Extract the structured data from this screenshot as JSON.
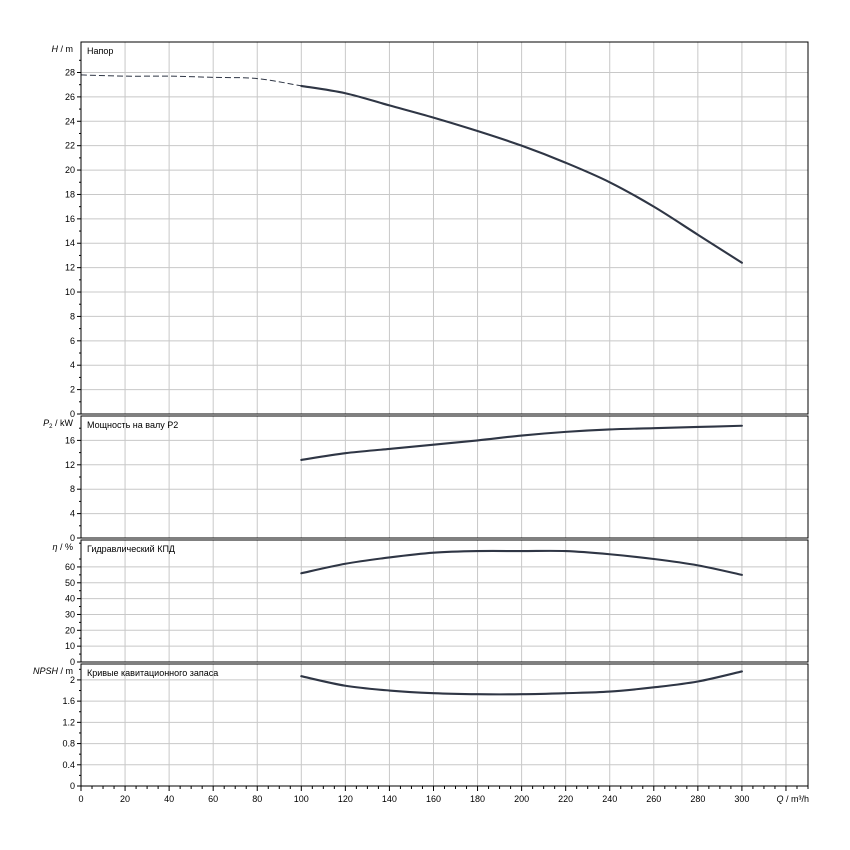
{
  "chart_data": {
    "type": "line",
    "x_axis": {
      "label_var": "Q",
      "label_unit": " / m³/h",
      "range": [
        0,
        330
      ],
      "ticks": [
        0,
        20,
        40,
        60,
        80,
        100,
        120,
        140,
        160,
        180,
        200,
        220,
        240,
        260,
        280,
        300
      ],
      "minor_step": 5
    },
    "grid": true,
    "panels": [
      {
        "id": "head",
        "title": "Напор",
        "ylabel_var": "H",
        "ylabel_unit": " / m",
        "ylim": [
          0,
          30.5
        ],
        "yticks": [
          0,
          2,
          4,
          6,
          8,
          10,
          12,
          14,
          16,
          18,
          20,
          22,
          24,
          26,
          28
        ],
        "dashed_series": {
          "x": [
            0,
            20,
            40,
            60,
            80,
            100
          ],
          "y": [
            27.8,
            27.7,
            27.7,
            27.6,
            27.5,
            26.9
          ]
        },
        "series": {
          "x": [
            100,
            120,
            140,
            160,
            180,
            200,
            220,
            240,
            260,
            280,
            300
          ],
          "y": [
            26.9,
            26.3,
            25.3,
            24.3,
            23.2,
            22.0,
            20.6,
            19.0,
            17.0,
            14.7,
            12.4
          ]
        }
      },
      {
        "id": "power",
        "title": "Мощность на валу P2",
        "ylabel_var": "P",
        "ylabel_sub": "2",
        "ylabel_unit": " / kW",
        "ylim": [
          0,
          20
        ],
        "yticks": [
          0,
          4,
          8,
          12,
          16
        ],
        "series": {
          "x": [
            100,
            120,
            140,
            160,
            180,
            200,
            220,
            240,
            260,
            280,
            300
          ],
          "y": [
            12.8,
            13.9,
            14.6,
            15.3,
            16.0,
            16.8,
            17.4,
            17.8,
            18.0,
            18.2,
            18.4
          ]
        }
      },
      {
        "id": "efficiency",
        "title": "Гидравлический КПД",
        "ylabel_var": "η",
        "ylabel_unit": " / %",
        "ylim": [
          0,
          77
        ],
        "yticks": [
          0,
          10,
          20,
          30,
          40,
          50,
          60
        ],
        "series": {
          "x": [
            100,
            120,
            140,
            160,
            180,
            200,
            220,
            240,
            260,
            280,
            300
          ],
          "y": [
            56,
            62,
            66,
            69,
            70,
            70,
            70,
            68,
            65,
            61,
            55
          ]
        }
      },
      {
        "id": "npsh",
        "title": "Кривые кавитационного запаса",
        "ylabel_var": "NPSH",
        "ylabel_unit": " / m",
        "ylim": [
          0,
          2.3
        ],
        "yticks": [
          0,
          0.4,
          0.8,
          1.2,
          1.6,
          2
        ],
        "ytick_labels": [
          "0",
          "0.4",
          "0.8",
          "1.2",
          "1.6",
          "2"
        ],
        "series": {
          "x": [
            100,
            120,
            140,
            160,
            180,
            200,
            220,
            240,
            260,
            280,
            300
          ],
          "y": [
            2.07,
            1.89,
            1.8,
            1.75,
            1.73,
            1.73,
            1.75,
            1.78,
            1.86,
            1.97,
            2.16
          ]
        }
      }
    ]
  }
}
